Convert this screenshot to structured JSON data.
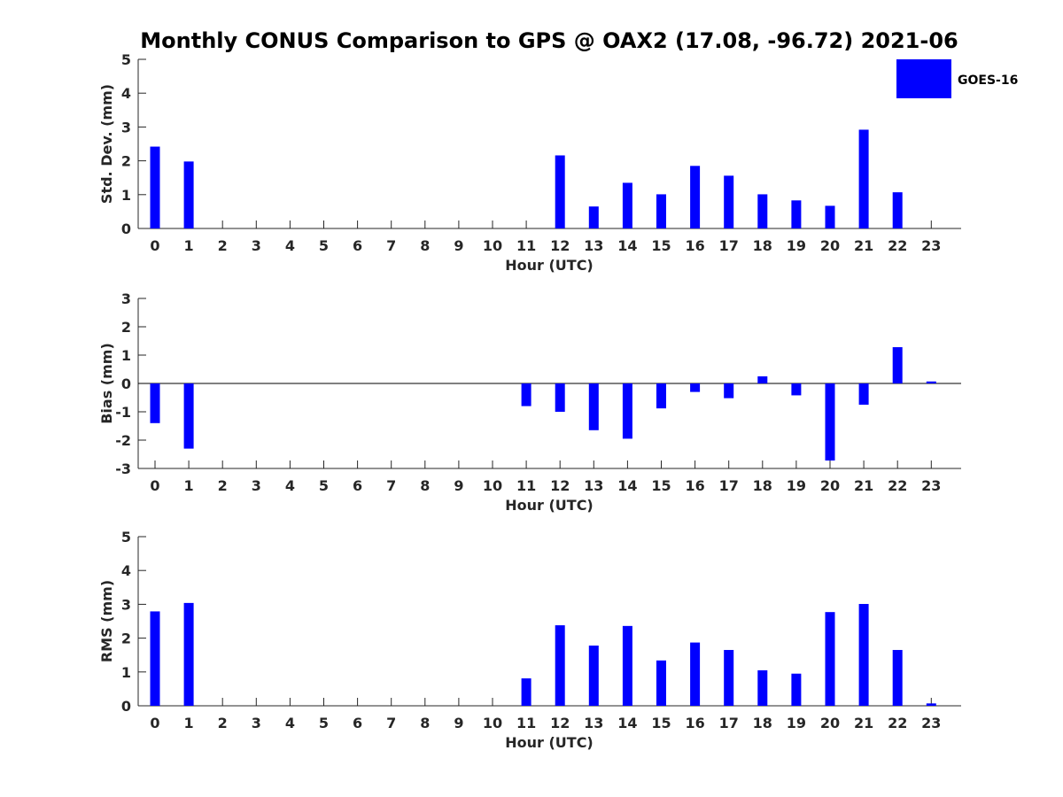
{
  "title": "Monthly CONUS Comparison to GPS @ OAX2 (17.08, -96.72) 2021-06",
  "legend": {
    "label": "GOES-16",
    "color": "#0000ff"
  },
  "chart_data": [
    {
      "type": "bar",
      "id": "std",
      "ylabel": "Std. Dev. (mm)",
      "xlabel": "Hour (UTC)",
      "ylim": [
        0,
        5
      ],
      "yticks": [
        0,
        1,
        2,
        3,
        4,
        5
      ],
      "categories": [
        "0",
        "1",
        "2",
        "3",
        "4",
        "5",
        "6",
        "7",
        "8",
        "9",
        "10",
        "11",
        "12",
        "13",
        "14",
        "15",
        "16",
        "17",
        "18",
        "19",
        "20",
        "21",
        "22",
        "23"
      ],
      "series": [
        {
          "name": "GOES-16",
          "values": [
            2.42,
            1.98,
            null,
            null,
            null,
            null,
            null,
            null,
            null,
            null,
            null,
            null,
            2.16,
            0.65,
            1.35,
            1.01,
            1.85,
            1.56,
            1.01,
            0.83,
            0.67,
            2.92,
            1.07,
            null
          ]
        }
      ],
      "zero_line": false
    },
    {
      "type": "bar",
      "id": "bias",
      "ylabel": "Bias (mm)",
      "xlabel": "Hour (UTC)",
      "ylim": [
        -3,
        3
      ],
      "yticks": [
        -3,
        -2,
        -1,
        0,
        1,
        2,
        3
      ],
      "categories": [
        "0",
        "1",
        "2",
        "3",
        "4",
        "5",
        "6",
        "7",
        "8",
        "9",
        "10",
        "11",
        "12",
        "13",
        "14",
        "15",
        "16",
        "17",
        "18",
        "19",
        "20",
        "21",
        "22",
        "23"
      ],
      "series": [
        {
          "name": "GOES-16",
          "values": [
            -1.4,
            -2.3,
            null,
            null,
            null,
            null,
            null,
            null,
            null,
            null,
            null,
            -0.8,
            -1.0,
            -1.65,
            -1.95,
            -0.88,
            -0.3,
            -0.52,
            0.25,
            -0.42,
            -2.72,
            -0.75,
            1.28,
            0.07
          ]
        }
      ],
      "zero_line": true
    },
    {
      "type": "bar",
      "id": "rms",
      "ylabel": "RMS (mm)",
      "xlabel": "Hour (UTC)",
      "ylim": [
        0,
        5
      ],
      "yticks": [
        0,
        1,
        2,
        3,
        4,
        5
      ],
      "categories": [
        "0",
        "1",
        "2",
        "3",
        "4",
        "5",
        "6",
        "7",
        "8",
        "9",
        "10",
        "11",
        "12",
        "13",
        "14",
        "15",
        "16",
        "17",
        "18",
        "19",
        "20",
        "21",
        "22",
        "23"
      ],
      "series": [
        {
          "name": "GOES-16",
          "values": [
            2.79,
            3.04,
            null,
            null,
            null,
            null,
            null,
            null,
            null,
            null,
            null,
            0.81,
            2.38,
            1.78,
            2.36,
            1.34,
            1.87,
            1.65,
            1.05,
            0.95,
            2.77,
            3.01,
            1.65,
            0.07
          ]
        }
      ],
      "zero_line": false
    }
  ]
}
